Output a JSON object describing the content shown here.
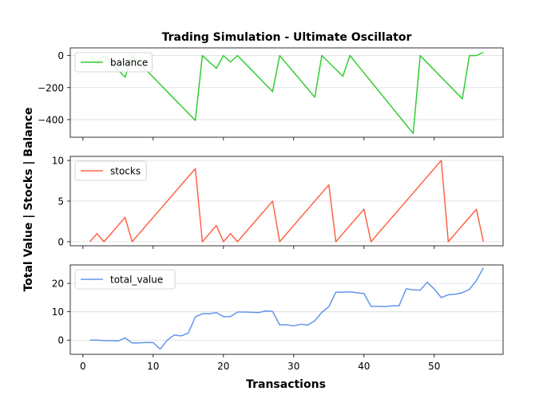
{
  "chart_data": {
    "type": "line",
    "title": "Trading Simulation - Ultimate Oscillator",
    "xlabel": "Transactions",
    "ylabel": "Total Value | Stocks | Balance",
    "shared_x": true,
    "xlim": [
      -1.8,
      59.8
    ],
    "xticks": [
      0,
      10,
      20,
      30,
      40,
      50
    ],
    "grid": "horizontal",
    "legend_placement": "upper left",
    "x": [
      1,
      2,
      3,
      4,
      5,
      6,
      7,
      8,
      9,
      10,
      11,
      12,
      13,
      14,
      15,
      16,
      17,
      18,
      19,
      20,
      21,
      22,
      23,
      24,
      25,
      26,
      27,
      28,
      29,
      30,
      31,
      32,
      33,
      34,
      35,
      36,
      37,
      38,
      39,
      40,
      41,
      42,
      43,
      44,
      45,
      46,
      47,
      48,
      49,
      50,
      51,
      52,
      53,
      54,
      55,
      56,
      57
    ],
    "panels": [
      {
        "series": [
          {
            "name": "balance",
            "color": "#32cd32",
            "values": [
              0,
              -45,
              0,
              -45,
              -90,
              -135,
              0,
              -45,
              -90,
              -135,
              -180,
              -225,
              -270,
              -315,
              -360,
              -405,
              0,
              -40,
              -80,
              0,
              -40,
              0,
              -45,
              -90,
              -135,
              -180,
              -225,
              0,
              -52,
              -104,
              -156,
              -208,
              -260,
              0,
              -43,
              -86,
              -129,
              0,
              -54,
              -108,
              -162,
              -216,
              -270,
              -324,
              -378,
              -432,
              -486,
              0,
              -45,
              -90,
              -135,
              -180,
              -225,
              -270,
              0,
              0,
              20
            ]
          }
        ],
        "ylim": [
          -510,
          48
        ],
        "yticks": [
          0,
          -200,
          -400
        ]
      },
      {
        "series": [
          {
            "name": "stocks",
            "color": "#ff6347",
            "values": [
              0,
              1,
              0,
              1,
              2,
              3,
              0,
              1,
              2,
              3,
              4,
              5,
              6,
              7,
              8,
              9,
              0,
              1,
              2,
              0,
              1,
              0,
              1,
              2,
              3,
              4,
              5,
              0,
              1,
              2,
              3,
              4,
              5,
              6,
              7,
              0,
              1,
              2,
              3,
              4,
              0,
              1,
              2,
              3,
              4,
              5,
              6,
              7,
              8,
              9,
              10,
              0,
              1,
              2,
              3,
              4,
              0
            ]
          }
        ],
        "ylim": [
          -0.5,
          10.5
        ],
        "yticks": [
          0,
          5,
          10
        ]
      },
      {
        "series": [
          {
            "name": "total_value",
            "color": "#6495ed",
            "values": [
              0,
              0,
              -0.2,
              -0.2,
              -0.3,
              0.8,
              -1,
              -1,
              -0.8,
              -0.9,
              -3.2,
              0,
              1.8,
              1.5,
              2.5,
              8.2,
              9.3,
              9.3,
              9.7,
              8.3,
              8.3,
              9.9,
              9.9,
              9.8,
              9.7,
              10.3,
              10.1,
              5.4,
              5.4,
              5,
              5.6,
              5.3,
              6.8,
              9.8,
              11.8,
              16.9,
              16.9,
              17,
              16.7,
              16.4,
              11.9,
              11.9,
              11.8,
              12.1,
              12.1,
              18.1,
              17.7,
              17.6,
              20.4,
              18,
              15,
              16,
              16.2,
              16.7,
              17.9,
              21,
              25.5
            ]
          }
        ],
        "ylim": [
          -5.0,
          26.5
        ],
        "yticks": [
          0,
          10,
          20
        ]
      }
    ]
  }
}
